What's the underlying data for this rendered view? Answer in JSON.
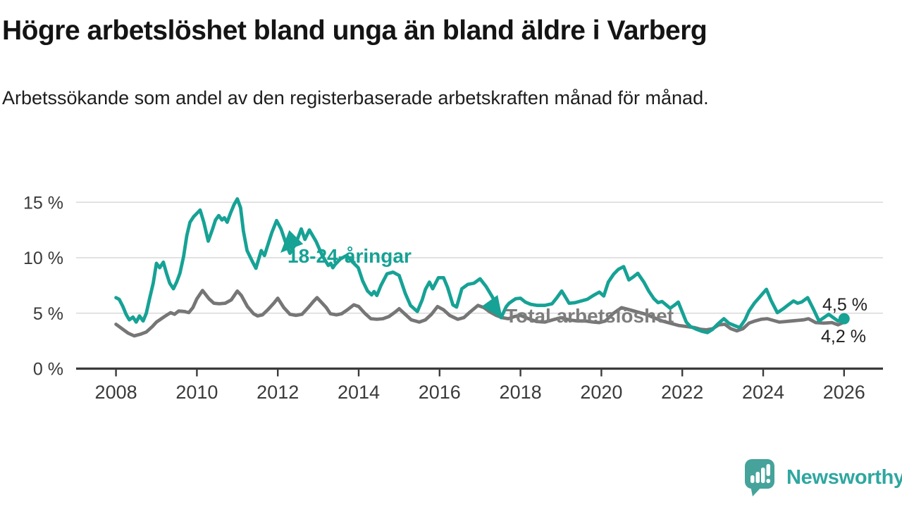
{
  "chart_data": {
    "type": "line",
    "title": "Högre arbetslöshet bland unga än bland äldre i Varberg",
    "subtitle": "Arbetssökande som andel av den registerbaserade arbetskraften månad för månad.",
    "xlabel": "",
    "ylabel": "",
    "x_axis": {
      "tick_values": [
        2008,
        2010,
        2012,
        2014,
        2016,
        2018,
        2020,
        2022,
        2024,
        2026
      ],
      "tick_labels": [
        "2008",
        "2010",
        "2012",
        "2014",
        "2016",
        "2018",
        "2020",
        "2022",
        "2024",
        "2026"
      ],
      "range": [
        2007.8,
        2027.0
      ]
    },
    "y_axis": {
      "tick_values": [
        0,
        5,
        10,
        15
      ],
      "tick_labels": [
        "0 %",
        "5 %",
        "10 %",
        "15 %"
      ],
      "range": [
        0,
        16.2
      ],
      "grid": "horizontal"
    },
    "legend_position": "inline-labels",
    "style": {
      "axis_color": "#3b3b3b",
      "grid_color": "#d9d9d9",
      "tick_text_color": "#3a3a3a",
      "end_label_color": "#1f1f1f"
    },
    "series": [
      {
        "name": "18-24-åringar",
        "color": "#16a295",
        "label_color": "#16a295",
        "end_label": "4,5 %",
        "end_value": 4.5,
        "end_dot": true,
        "points": [
          [
            2008.0,
            6.4
          ],
          [
            2008.08,
            6.25
          ],
          [
            2008.17,
            5.6
          ],
          [
            2008.25,
            4.9
          ],
          [
            2008.33,
            4.4
          ],
          [
            2008.42,
            4.65
          ],
          [
            2008.5,
            4.2
          ],
          [
            2008.58,
            4.75
          ],
          [
            2008.67,
            4.3
          ],
          [
            2008.75,
            5.0
          ],
          [
            2008.83,
            6.3
          ],
          [
            2008.92,
            7.7
          ],
          [
            2009.0,
            9.5
          ],
          [
            2009.08,
            9.1
          ],
          [
            2009.17,
            9.6
          ],
          [
            2009.25,
            8.6
          ],
          [
            2009.33,
            7.7
          ],
          [
            2009.42,
            7.2
          ],
          [
            2009.5,
            7.8
          ],
          [
            2009.58,
            8.6
          ],
          [
            2009.67,
            10.1
          ],
          [
            2009.75,
            12.0
          ],
          [
            2009.83,
            13.2
          ],
          [
            2009.92,
            13.7
          ],
          [
            2010.0,
            14.0
          ],
          [
            2010.08,
            14.3
          ],
          [
            2010.17,
            13.2
          ],
          [
            2010.28,
            11.5
          ],
          [
            2010.38,
            12.5
          ],
          [
            2010.46,
            13.4
          ],
          [
            2010.54,
            13.8
          ],
          [
            2010.62,
            13.4
          ],
          [
            2010.68,
            13.6
          ],
          [
            2010.75,
            13.2
          ],
          [
            2010.83,
            14.0
          ],
          [
            2010.92,
            14.8
          ],
          [
            2011.0,
            15.3
          ],
          [
            2011.08,
            14.5
          ],
          [
            2011.15,
            12.4
          ],
          [
            2011.24,
            10.65
          ],
          [
            2011.38,
            9.6
          ],
          [
            2011.46,
            9.05
          ],
          [
            2011.59,
            10.65
          ],
          [
            2011.67,
            10.2
          ],
          [
            2011.85,
            12.25
          ],
          [
            2011.97,
            13.35
          ],
          [
            2012.08,
            12.6
          ],
          [
            2012.2,
            11.3
          ],
          [
            2012.3,
            10.4
          ],
          [
            2012.45,
            11.3
          ],
          [
            2012.58,
            12.6
          ],
          [
            2012.67,
            11.65
          ],
          [
            2012.78,
            12.5
          ],
          [
            2012.95,
            11.45
          ],
          [
            2013.1,
            10.2
          ],
          [
            2013.25,
            9.3
          ],
          [
            2013.31,
            9.5
          ],
          [
            2013.36,
            9.1
          ],
          [
            2013.42,
            9.4
          ],
          [
            2013.55,
            9.9
          ],
          [
            2013.7,
            10.2
          ],
          [
            2013.85,
            9.6
          ],
          [
            2013.99,
            9.1
          ],
          [
            2014.1,
            7.9
          ],
          [
            2014.22,
            7.0
          ],
          [
            2014.32,
            6.65
          ],
          [
            2014.38,
            6.95
          ],
          [
            2014.45,
            6.6
          ],
          [
            2014.55,
            7.5
          ],
          [
            2014.7,
            8.55
          ],
          [
            2014.85,
            8.7
          ],
          [
            2015.0,
            8.4
          ],
          [
            2015.15,
            6.8
          ],
          [
            2015.28,
            5.7
          ],
          [
            2015.45,
            5.15
          ],
          [
            2015.57,
            6.2
          ],
          [
            2015.65,
            7.15
          ],
          [
            2015.75,
            7.8
          ],
          [
            2015.83,
            7.2
          ],
          [
            2015.97,
            8.2
          ],
          [
            2016.1,
            8.2
          ],
          [
            2016.2,
            7.3
          ],
          [
            2016.33,
            5.75
          ],
          [
            2016.42,
            5.55
          ],
          [
            2016.55,
            7.2
          ],
          [
            2016.7,
            7.6
          ],
          [
            2016.85,
            7.7
          ],
          [
            2017.0,
            8.1
          ],
          [
            2017.15,
            7.4
          ],
          [
            2017.3,
            6.5
          ],
          [
            2017.42,
            5.6
          ],
          [
            2017.52,
            4.6
          ],
          [
            2017.65,
            5.6
          ],
          [
            2017.72,
            5.9
          ],
          [
            2017.8,
            6.1
          ],
          [
            2017.88,
            6.3
          ],
          [
            2018.0,
            6.35
          ],
          [
            2018.12,
            6.0
          ],
          [
            2018.25,
            5.8
          ],
          [
            2018.42,
            5.7
          ],
          [
            2018.6,
            5.7
          ],
          [
            2018.78,
            5.85
          ],
          [
            2018.9,
            6.4
          ],
          [
            2019.02,
            7.0
          ],
          [
            2019.12,
            6.4
          ],
          [
            2019.2,
            5.9
          ],
          [
            2019.35,
            5.95
          ],
          [
            2019.5,
            6.1
          ],
          [
            2019.65,
            6.25
          ],
          [
            2019.8,
            6.6
          ],
          [
            2019.95,
            6.9
          ],
          [
            2020.06,
            6.55
          ],
          [
            2020.17,
            7.8
          ],
          [
            2020.3,
            8.5
          ],
          [
            2020.42,
            8.95
          ],
          [
            2020.55,
            9.2
          ],
          [
            2020.68,
            8.0
          ],
          [
            2020.8,
            8.3
          ],
          [
            2020.9,
            8.6
          ],
          [
            2021.05,
            7.8
          ],
          [
            2021.17,
            7.0
          ],
          [
            2021.3,
            6.3
          ],
          [
            2021.4,
            5.95
          ],
          [
            2021.5,
            6.05
          ],
          [
            2021.6,
            5.75
          ],
          [
            2021.7,
            5.45
          ],
          [
            2021.8,
            5.7
          ],
          [
            2021.9,
            6.0
          ],
          [
            2022.0,
            5.1
          ],
          [
            2022.1,
            4.2
          ],
          [
            2022.2,
            3.8
          ],
          [
            2022.35,
            3.55
          ],
          [
            2022.5,
            3.35
          ],
          [
            2022.62,
            3.25
          ],
          [
            2022.75,
            3.55
          ],
          [
            2022.9,
            4.1
          ],
          [
            2023.03,
            4.5
          ],
          [
            2023.15,
            4.1
          ],
          [
            2023.28,
            3.9
          ],
          [
            2023.42,
            3.7
          ],
          [
            2023.55,
            4.4
          ],
          [
            2023.65,
            5.2
          ],
          [
            2023.78,
            5.9
          ],
          [
            2023.9,
            6.4
          ],
          [
            2024.02,
            6.9
          ],
          [
            2024.08,
            7.15
          ],
          [
            2024.2,
            6.1
          ],
          [
            2024.35,
            5.05
          ],
          [
            2024.5,
            5.4
          ],
          [
            2024.62,
            5.75
          ],
          [
            2024.75,
            6.1
          ],
          [
            2024.85,
            5.9
          ],
          [
            2024.95,
            6.0
          ],
          [
            2025.1,
            6.4
          ],
          [
            2025.25,
            5.3
          ],
          [
            2025.38,
            4.3
          ],
          [
            2025.5,
            4.6
          ],
          [
            2025.62,
            4.9
          ],
          [
            2025.75,
            4.55
          ],
          [
            2025.85,
            4.3
          ],
          [
            2026.0,
            4.5
          ]
        ]
      },
      {
        "name": "Total arbetslöshet",
        "color": "#767676",
        "label_color": "#7d7d7d",
        "end_label": "4,2 %",
        "end_value": 4.2,
        "end_dot": false,
        "points": [
          [
            2008.0,
            4.0
          ],
          [
            2008.15,
            3.6
          ],
          [
            2008.3,
            3.2
          ],
          [
            2008.45,
            2.95
          ],
          [
            2008.6,
            3.1
          ],
          [
            2008.75,
            3.3
          ],
          [
            2008.9,
            3.8
          ],
          [
            2009.0,
            4.2
          ],
          [
            2009.2,
            4.7
          ],
          [
            2009.35,
            5.05
          ],
          [
            2009.45,
            4.9
          ],
          [
            2009.55,
            5.2
          ],
          [
            2009.7,
            5.15
          ],
          [
            2009.8,
            5.05
          ],
          [
            2009.9,
            5.5
          ],
          [
            2010.0,
            6.3
          ],
          [
            2010.14,
            7.05
          ],
          [
            2010.3,
            6.3
          ],
          [
            2010.42,
            5.9
          ],
          [
            2010.55,
            5.85
          ],
          [
            2010.7,
            5.9
          ],
          [
            2010.85,
            6.2
          ],
          [
            2011.0,
            7.0
          ],
          [
            2011.1,
            6.6
          ],
          [
            2011.25,
            5.6
          ],
          [
            2011.4,
            4.95
          ],
          [
            2011.5,
            4.75
          ],
          [
            2011.62,
            4.85
          ],
          [
            2011.75,
            5.3
          ],
          [
            2011.9,
            5.9
          ],
          [
            2012.0,
            6.35
          ],
          [
            2012.15,
            5.5
          ],
          [
            2012.3,
            4.9
          ],
          [
            2012.45,
            4.8
          ],
          [
            2012.6,
            4.9
          ],
          [
            2012.75,
            5.5
          ],
          [
            2012.88,
            6.05
          ],
          [
            2012.97,
            6.4
          ],
          [
            2013.1,
            5.9
          ],
          [
            2013.2,
            5.5
          ],
          [
            2013.3,
            4.95
          ],
          [
            2013.45,
            4.85
          ],
          [
            2013.58,
            4.95
          ],
          [
            2013.72,
            5.3
          ],
          [
            2013.88,
            5.75
          ],
          [
            2014.0,
            5.6
          ],
          [
            2014.15,
            5.0
          ],
          [
            2014.3,
            4.5
          ],
          [
            2014.45,
            4.45
          ],
          [
            2014.6,
            4.5
          ],
          [
            2014.75,
            4.7
          ],
          [
            2014.9,
            5.1
          ],
          [
            2015.0,
            5.4
          ],
          [
            2015.15,
            4.9
          ],
          [
            2015.3,
            4.4
          ],
          [
            2015.5,
            4.2
          ],
          [
            2015.65,
            4.4
          ],
          [
            2015.8,
            4.9
          ],
          [
            2015.95,
            5.6
          ],
          [
            2016.1,
            5.3
          ],
          [
            2016.25,
            4.8
          ],
          [
            2016.45,
            4.45
          ],
          [
            2016.6,
            4.6
          ],
          [
            2016.75,
            5.1
          ],
          [
            2016.95,
            5.7
          ],
          [
            2017.1,
            5.5
          ],
          [
            2017.25,
            5.1
          ],
          [
            2017.4,
            4.8
          ],
          [
            2017.55,
            4.6
          ],
          [
            2017.7,
            4.5
          ],
          [
            2017.85,
            4.7
          ],
          [
            2018.0,
            4.8
          ],
          [
            2018.2,
            4.5
          ],
          [
            2018.4,
            4.25
          ],
          [
            2018.6,
            4.2
          ],
          [
            2018.8,
            4.4
          ],
          [
            2019.0,
            4.6
          ],
          [
            2019.2,
            4.4
          ],
          [
            2019.4,
            4.3
          ],
          [
            2019.6,
            4.3
          ],
          [
            2019.8,
            4.2
          ],
          [
            2019.95,
            4.15
          ],
          [
            2020.1,
            4.3
          ],
          [
            2020.3,
            5.0
          ],
          [
            2020.5,
            5.5
          ],
          [
            2020.7,
            5.3
          ],
          [
            2020.9,
            5.1
          ],
          [
            2021.1,
            4.9
          ],
          [
            2021.3,
            4.6
          ],
          [
            2021.5,
            4.3
          ],
          [
            2021.7,
            4.1
          ],
          [
            2021.9,
            3.9
          ],
          [
            2022.1,
            3.8
          ],
          [
            2022.3,
            3.7
          ],
          [
            2022.45,
            3.55
          ],
          [
            2022.6,
            3.5
          ],
          [
            2022.75,
            3.6
          ],
          [
            2022.9,
            3.95
          ],
          [
            2023.05,
            4.0
          ],
          [
            2023.2,
            3.6
          ],
          [
            2023.35,
            3.4
          ],
          [
            2023.5,
            3.6
          ],
          [
            2023.65,
            4.1
          ],
          [
            2023.8,
            4.3
          ],
          [
            2023.95,
            4.45
          ],
          [
            2024.1,
            4.5
          ],
          [
            2024.25,
            4.35
          ],
          [
            2024.4,
            4.2
          ],
          [
            2024.55,
            4.25
          ],
          [
            2024.7,
            4.3
          ],
          [
            2024.85,
            4.35
          ],
          [
            2025.0,
            4.4
          ],
          [
            2025.12,
            4.5
          ],
          [
            2025.3,
            4.15
          ],
          [
            2025.5,
            4.1
          ],
          [
            2025.7,
            4.15
          ],
          [
            2025.85,
            3.95
          ],
          [
            2026.0,
            4.2
          ]
        ]
      }
    ]
  },
  "footer": {
    "brand": "Newsworthy",
    "brand_color": "#2ea7a0",
    "logo_mark_color": "#45a39b"
  }
}
